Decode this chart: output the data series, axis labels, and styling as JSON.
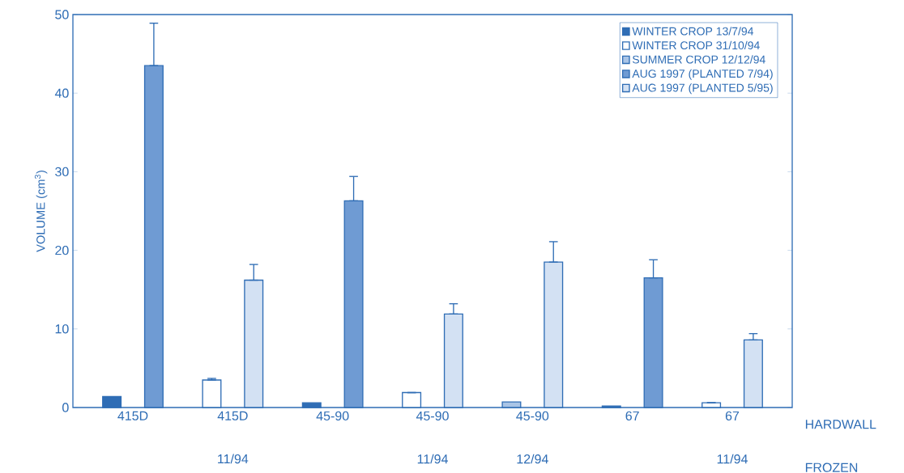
{
  "chart_data": {
    "type": "bar",
    "ylabel": "VOLUME (cm$^{3}$)",
    "categories": [
      "415D",
      "415D 11/94",
      "45-90",
      "45-90 11/94",
      "45-90 12/94",
      "67",
      "67 11/94"
    ],
    "series": [
      {
        "name": "WINTER CROP 13/7/94",
        "color": "#2f6db5",
        "values": [
          1.4,
          null,
          0.6,
          null,
          null,
          0.2,
          null
        ]
      },
      {
        "name": "WINTER CROP 31/10/94",
        "color": "#ffffff",
        "values": [
          null,
          3.5,
          null,
          1.9,
          null,
          null,
          0.6
        ],
        "errors": [
          null,
          [
            3.5,
            3.7
          ],
          null,
          null,
          null,
          null,
          null
        ]
      },
      {
        "name": "SUMMER CROP 12/12/94",
        "color": "#a9c4e6",
        "values": [
          null,
          null,
          null,
          null,
          0.7,
          null,
          null
        ]
      },
      {
        "name": "AUG 1997 (PLANTED 7/94)",
        "color": "#6f9bd3",
        "values": [
          43.5,
          null,
          26.3,
          null,
          null,
          16.5,
          null
        ],
        "errors": [
          [
            43.5,
            48.9
          ],
          null,
          [
            26.3,
            29.4
          ],
          null,
          null,
          [
            16.5,
            18.8
          ],
          null
        ]
      },
      {
        "name": "AUG 1997 (PLANTED 5/95)",
        "color": "#d3e1f3",
        "values": [
          null,
          16.2,
          null,
          11.9,
          18.5,
          null,
          8.6
        ],
        "errors": [
          null,
          [
            16.2,
            18.2
          ],
          null,
          [
            11.9,
            13.2
          ],
          [
            18.5,
            21.1
          ],
          null,
          [
            8.6,
            9.4
          ]
        ]
      }
    ],
    "ylim": [
      0,
      50
    ],
    "yticks": [
      0,
      10,
      20,
      30,
      40,
      50
    ],
    "legend": "top right",
    "annotations": [
      "HARDWALL",
      "FROZEN"
    ]
  }
}
